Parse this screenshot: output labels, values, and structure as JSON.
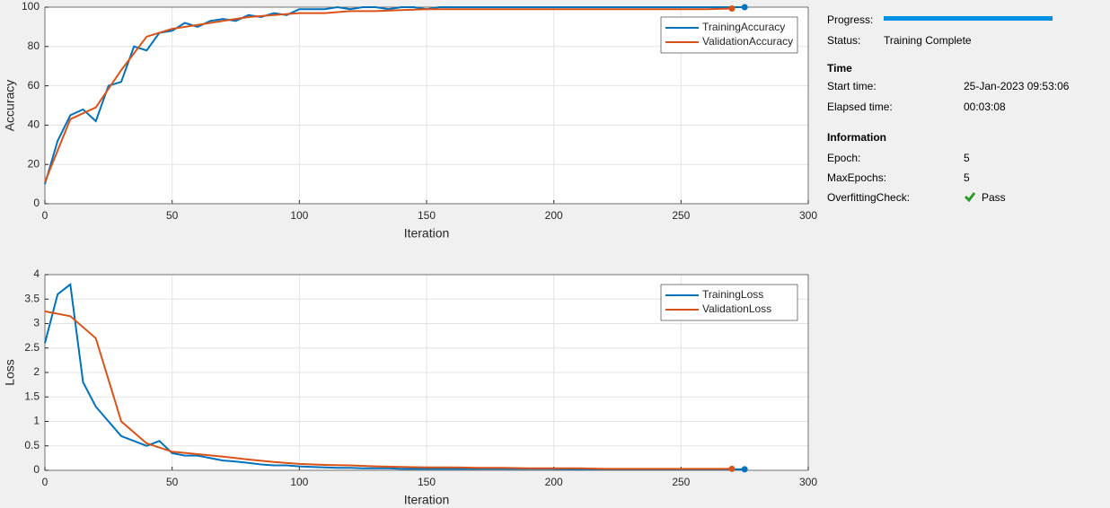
{
  "chart_data": [
    {
      "type": "line",
      "ylabel": "Accuracy",
      "xlabel": "Iteration",
      "xlim": [
        0,
        300
      ],
      "xticks": [
        0,
        50,
        100,
        150,
        200,
        250,
        300
      ],
      "ylim": [
        0,
        100
      ],
      "yticks": [
        0,
        20,
        40,
        60,
        80,
        100
      ],
      "grid": true,
      "legend": "upper right",
      "series": [
        {
          "name": "TrainingAccuracy",
          "color": "#0072bd",
          "x": [
            0,
            5,
            10,
            15,
            20,
            25,
            30,
            35,
            40,
            45,
            50,
            55,
            60,
            65,
            70,
            75,
            80,
            85,
            90,
            95,
            100,
            105,
            110,
            115,
            120,
            125,
            130,
            135,
            140,
            145,
            150,
            155,
            160,
            165,
            170,
            175,
            180,
            185,
            190,
            195,
            200,
            205,
            210,
            215,
            220,
            225,
            230,
            235,
            240,
            245,
            250,
            255,
            260,
            265,
            270,
            275
          ],
          "values": [
            10,
            32,
            45,
            48,
            42,
            60,
            62,
            80,
            78,
            87,
            88,
            92,
            90,
            93,
            94,
            93,
            96,
            95,
            97,
            96,
            99,
            99,
            99,
            100,
            99,
            100,
            100,
            99,
            100,
            100,
            99,
            100,
            100,
            100,
            100,
            100,
            100,
            100,
            100,
            100,
            100,
            100,
            100,
            100,
            100,
            100,
            100,
            100,
            100,
            100,
            100,
            100,
            100,
            100,
            100,
            100
          ]
        },
        {
          "name": "ValidationAccuracy",
          "color": "#d95319",
          "x": [
            0,
            10,
            20,
            30,
            40,
            50,
            60,
            70,
            80,
            90,
            100,
            110,
            120,
            130,
            140,
            150,
            160,
            170,
            180,
            190,
            200,
            210,
            220,
            230,
            240,
            250,
            260,
            270
          ],
          "values": [
            11,
            43,
            49,
            68,
            85,
            89,
            91,
            93,
            95,
            96,
            97,
            97,
            98,
            98,
            98.5,
            99,
            99,
            99,
            99,
            99,
            99,
            99,
            99,
            99,
            99,
            99,
            99,
            99.3
          ]
        }
      ]
    },
    {
      "type": "line",
      "ylabel": "Loss",
      "xlabel": "Iteration",
      "xlim": [
        0,
        300
      ],
      "xticks": [
        0,
        50,
        100,
        150,
        200,
        250,
        300
      ],
      "ylim": [
        0,
        4
      ],
      "yticks": [
        0,
        0.5,
        1,
        1.5,
        2,
        2.5,
        3,
        3.5,
        4
      ],
      "grid": true,
      "legend": "upper right",
      "series": [
        {
          "name": "TrainingLoss",
          "color": "#0072bd",
          "x": [
            0,
            5,
            10,
            15,
            20,
            25,
            30,
            35,
            40,
            45,
            50,
            55,
            60,
            65,
            70,
            75,
            80,
            85,
            90,
            95,
            100,
            105,
            110,
            115,
            120,
            125,
            130,
            135,
            140,
            145,
            150,
            155,
            160,
            165,
            170,
            175,
            180,
            185,
            190,
            195,
            200,
            205,
            210,
            215,
            220,
            225,
            230,
            235,
            240,
            245,
            250,
            255,
            260,
            265,
            270,
            275
          ],
          "values": [
            2.6,
            3.6,
            3.8,
            1.8,
            1.3,
            1.0,
            0.7,
            0.6,
            0.5,
            0.6,
            0.35,
            0.3,
            0.3,
            0.25,
            0.2,
            0.18,
            0.15,
            0.12,
            0.1,
            0.1,
            0.08,
            0.07,
            0.06,
            0.05,
            0.05,
            0.04,
            0.04,
            0.04,
            0.03,
            0.03,
            0.03,
            0.03,
            0.03,
            0.03,
            0.03,
            0.03,
            0.03,
            0.03,
            0.03,
            0.03,
            0.03,
            0.02,
            0.02,
            0.02,
            0.02,
            0.02,
            0.02,
            0.02,
            0.02,
            0.02,
            0.02,
            0.02,
            0.02,
            0.02,
            0.02,
            0.02
          ]
        },
        {
          "name": "ValidationLoss",
          "color": "#d95319",
          "x": [
            0,
            10,
            20,
            30,
            40,
            50,
            60,
            70,
            80,
            90,
            100,
            110,
            120,
            130,
            140,
            150,
            160,
            170,
            180,
            190,
            200,
            210,
            220,
            230,
            240,
            250,
            260,
            270
          ],
          "values": [
            3.25,
            3.15,
            2.7,
            1.0,
            0.55,
            0.38,
            0.33,
            0.28,
            0.22,
            0.17,
            0.13,
            0.11,
            0.1,
            0.08,
            0.07,
            0.06,
            0.06,
            0.05,
            0.05,
            0.04,
            0.04,
            0.04,
            0.03,
            0.03,
            0.03,
            0.03,
            0.03,
            0.03
          ]
        }
      ]
    }
  ],
  "info": {
    "progress_label": "Progress:",
    "status_label": "Status:",
    "status": "Training Complete",
    "time": {
      "heading": "Time",
      "start_label": "Start time:",
      "start": "25-Jan-2023 09:53:06",
      "elapsed_label": "Elapsed time:",
      "elapsed": "00:03:08"
    },
    "information": {
      "heading": "Information",
      "epoch_label": "Epoch:",
      "epoch": 5,
      "max_epochs_label": "MaxEpochs:",
      "max_epochs": 5,
      "check_label": "OverfittingCheck:",
      "check": "Pass"
    }
  }
}
